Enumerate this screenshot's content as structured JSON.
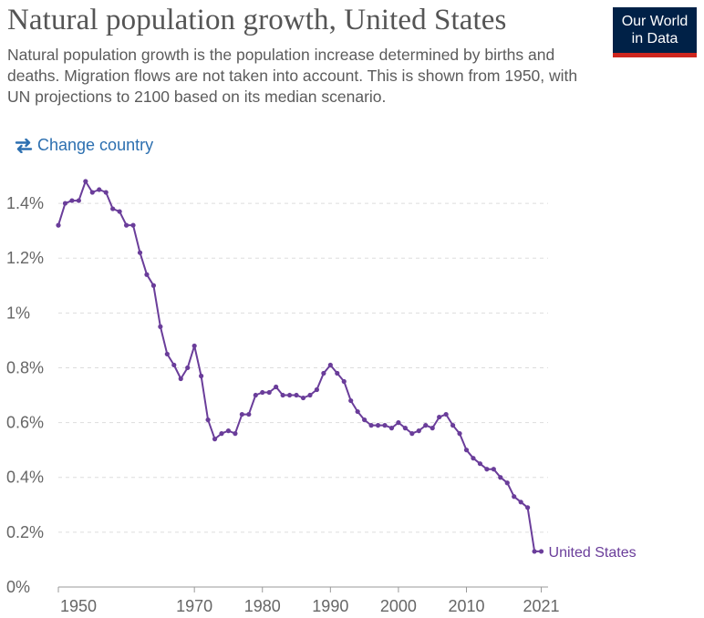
{
  "header": {
    "title": "Natural population growth, United States",
    "subtitle": "Natural population growth is the population increase determined by births and deaths. Migration flows are not taken into account. This is shown from 1950, with UN projections to 2100 based on its median scenario."
  },
  "logo": {
    "line1": "Our World",
    "line2": "in Data"
  },
  "controls": {
    "change_country_label": "Change country",
    "icon": "swap-arrows-icon"
  },
  "colors": {
    "series": "#6a3d9a",
    "grid": "#dddddd",
    "axis": "#999999",
    "logo_bg": "#002147",
    "logo_accent": "#ce261e",
    "link": "#2c6fb0"
  },
  "chart_data": {
    "type": "line",
    "title": "Natural population growth, United States",
    "xlabel": "",
    "ylabel": "",
    "y_unit": "%",
    "xlim": [
      1950,
      2022
    ],
    "ylim": [
      0,
      1.5
    ],
    "grid": "horizontal dashed",
    "y_ticks": [
      {
        "value": 0,
        "label": "0%"
      },
      {
        "value": 0.2,
        "label": "0.2%"
      },
      {
        "value": 0.4,
        "label": "0.4%"
      },
      {
        "value": 0.6,
        "label": "0.6%"
      },
      {
        "value": 0.8,
        "label": "0.8%"
      },
      {
        "value": 1.0,
        "label": "1%"
      },
      {
        "value": 1.2,
        "label": "1.2%"
      },
      {
        "value": 1.4,
        "label": "1.4%"
      }
    ],
    "x_ticks": [
      {
        "value": 1950,
        "label": "1950"
      },
      {
        "value": 1970,
        "label": "1970"
      },
      {
        "value": 1980,
        "label": "1980"
      },
      {
        "value": 1990,
        "label": "1990"
      },
      {
        "value": 2000,
        "label": "2000"
      },
      {
        "value": 2010,
        "label": "2010"
      },
      {
        "value": 2021,
        "label": "2021"
      }
    ],
    "series": [
      {
        "name": "United States",
        "x": [
          1950,
          1951,
          1952,
          1953,
          1954,
          1955,
          1956,
          1957,
          1958,
          1959,
          1960,
          1961,
          1962,
          1963,
          1964,
          1965,
          1966,
          1967,
          1968,
          1969,
          1970,
          1971,
          1972,
          1973,
          1974,
          1975,
          1976,
          1977,
          1978,
          1979,
          1980,
          1981,
          1982,
          1983,
          1984,
          1985,
          1986,
          1987,
          1988,
          1989,
          1990,
          1991,
          1992,
          1993,
          1994,
          1995,
          1996,
          1997,
          1998,
          1999,
          2000,
          2001,
          2002,
          2003,
          2004,
          2005,
          2006,
          2007,
          2008,
          2009,
          2010,
          2011,
          2012,
          2013,
          2014,
          2015,
          2016,
          2017,
          2018,
          2019,
          2020,
          2021
        ],
        "values": [
          1.32,
          1.4,
          1.41,
          1.41,
          1.48,
          1.44,
          1.45,
          1.44,
          1.38,
          1.37,
          1.32,
          1.32,
          1.22,
          1.14,
          1.1,
          0.95,
          0.85,
          0.81,
          0.76,
          0.8,
          0.88,
          0.77,
          0.61,
          0.54,
          0.56,
          0.57,
          0.56,
          0.63,
          0.63,
          0.7,
          0.71,
          0.71,
          0.73,
          0.7,
          0.7,
          0.7,
          0.69,
          0.7,
          0.72,
          0.78,
          0.81,
          0.78,
          0.75,
          0.68,
          0.64,
          0.61,
          0.59,
          0.59,
          0.59,
          0.58,
          0.6,
          0.58,
          0.56,
          0.57,
          0.59,
          0.58,
          0.62,
          0.63,
          0.59,
          0.56,
          0.5,
          0.47,
          0.45,
          0.43,
          0.43,
          0.4,
          0.38,
          0.33,
          0.31,
          0.29,
          0.13,
          0.13
        ]
      }
    ]
  }
}
